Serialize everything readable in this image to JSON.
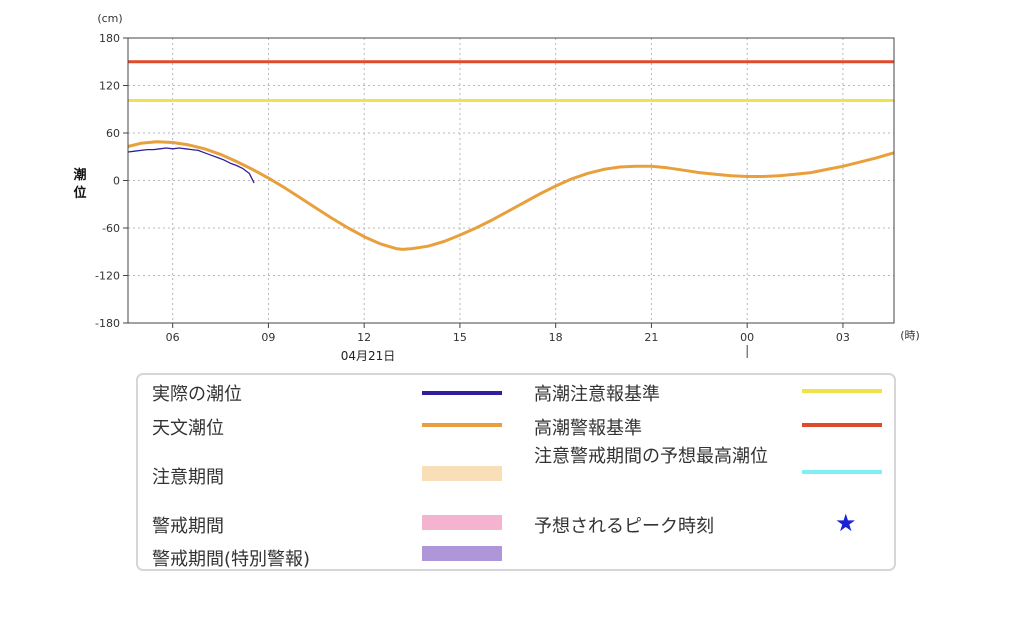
{
  "chart_data": {
    "type": "line",
    "unit_label": "(cm)",
    "x_unit_label": "(時)",
    "ylabel": "潮位",
    "date_label": "04月21日",
    "ylim": [
      -180,
      180
    ],
    "y_ticks": [
      180,
      120,
      60,
      0,
      -60,
      -120,
      -180
    ],
    "x_hours_range": [
      4.6,
      28.6
    ],
    "x_ticks": [
      {
        "hour": 6,
        "label": "06"
      },
      {
        "hour": 9,
        "label": "09"
      },
      {
        "hour": 12,
        "label": "12"
      },
      {
        "hour": 15,
        "label": "15"
      },
      {
        "hour": 18,
        "label": "18"
      },
      {
        "hour": 21,
        "label": "21"
      },
      {
        "hour": 24,
        "label": "00"
      },
      {
        "hour": 27,
        "label": "03"
      }
    ],
    "grid": true,
    "series": [
      {
        "name": "天文潮位",
        "color": "#e8a03c",
        "points": [
          [
            4.6,
            43
          ],
          [
            5.0,
            47
          ],
          [
            5.5,
            49
          ],
          [
            6.0,
            48
          ],
          [
            6.5,
            45
          ],
          [
            7.0,
            40
          ],
          [
            7.5,
            33
          ],
          [
            8.0,
            24
          ],
          [
            8.5,
            14
          ],
          [
            9.0,
            3
          ],
          [
            9.5,
            -9
          ],
          [
            10.0,
            -22
          ],
          [
            10.5,
            -35
          ],
          [
            11.0,
            -48
          ],
          [
            11.5,
            -60
          ],
          [
            12.0,
            -71
          ],
          [
            12.5,
            -80
          ],
          [
            13.0,
            -86
          ],
          [
            13.2,
            -87
          ],
          [
            13.5,
            -86
          ],
          [
            14.0,
            -83
          ],
          [
            14.5,
            -77
          ],
          [
            15.0,
            -69
          ],
          [
            15.5,
            -60
          ],
          [
            16.0,
            -50
          ],
          [
            16.5,
            -39
          ],
          [
            17.0,
            -28
          ],
          [
            17.5,
            -17
          ],
          [
            18.0,
            -7
          ],
          [
            18.5,
            2
          ],
          [
            19.0,
            9
          ],
          [
            19.5,
            14
          ],
          [
            20.0,
            17
          ],
          [
            20.5,
            18
          ],
          [
            21.0,
            18
          ],
          [
            21.5,
            16
          ],
          [
            22.0,
            13
          ],
          [
            22.5,
            10
          ],
          [
            23.0,
            8
          ],
          [
            23.5,
            6
          ],
          [
            24.0,
            5
          ],
          [
            24.5,
            5
          ],
          [
            25.0,
            6
          ],
          [
            25.5,
            8
          ],
          [
            26.0,
            10
          ],
          [
            26.5,
            14
          ],
          [
            27.0,
            18
          ],
          [
            27.5,
            23
          ],
          [
            28.0,
            28
          ],
          [
            28.6,
            35
          ]
        ]
      },
      {
        "name": "実際の潮位",
        "color": "#2f1fa0",
        "points": [
          [
            4.6,
            36
          ],
          [
            4.8,
            37
          ],
          [
            5.0,
            38
          ],
          [
            5.2,
            39
          ],
          [
            5.4,
            39
          ],
          [
            5.6,
            40
          ],
          [
            5.8,
            41
          ],
          [
            6.0,
            40
          ],
          [
            6.2,
            41
          ],
          [
            6.4,
            40
          ],
          [
            6.6,
            39
          ],
          [
            6.8,
            38
          ],
          [
            7.0,
            35
          ],
          [
            7.2,
            32
          ],
          [
            7.4,
            29
          ],
          [
            7.6,
            26
          ],
          [
            7.8,
            22
          ],
          [
            8.0,
            19
          ],
          [
            8.2,
            15
          ],
          [
            8.4,
            9
          ],
          [
            8.55,
            -3
          ]
        ]
      }
    ],
    "thresholds": [
      {
        "name": "高潮警報基準",
        "value": 150,
        "color": "#e04a2a"
      },
      {
        "name": "高潮注意報基準",
        "value": 101,
        "color": "#f0e24a"
      }
    ],
    "now_marker_hour": 24
  },
  "legend": {
    "items": [
      {
        "label": "実際の潮位",
        "color": "#2f1fa0",
        "kind": "line"
      },
      {
        "label": "天文潮位",
        "color": "#e8a03c",
        "kind": "line"
      },
      {
        "label": "注意期間",
        "color": "#f8dfb8",
        "kind": "band"
      },
      {
        "label": "警戒期間",
        "color": "#f4b3cf",
        "kind": "band"
      },
      {
        "label": "警戒期間(特別警報)",
        "color": "#ae96d8",
        "kind": "band"
      },
      {
        "label": "高潮注意報基準",
        "color": "#f0e24a",
        "kind": "line"
      },
      {
        "label": "高潮警報基準",
        "color": "#e04a2a",
        "kind": "line"
      },
      {
        "label": "注意警戒期間の予想最高潮位",
        "color": "#7ef0f4",
        "kind": "line"
      },
      {
        "label": "予想されるピーク時刻",
        "color": "#1a22d8",
        "kind": "star",
        "icon": "star-icon"
      }
    ]
  }
}
